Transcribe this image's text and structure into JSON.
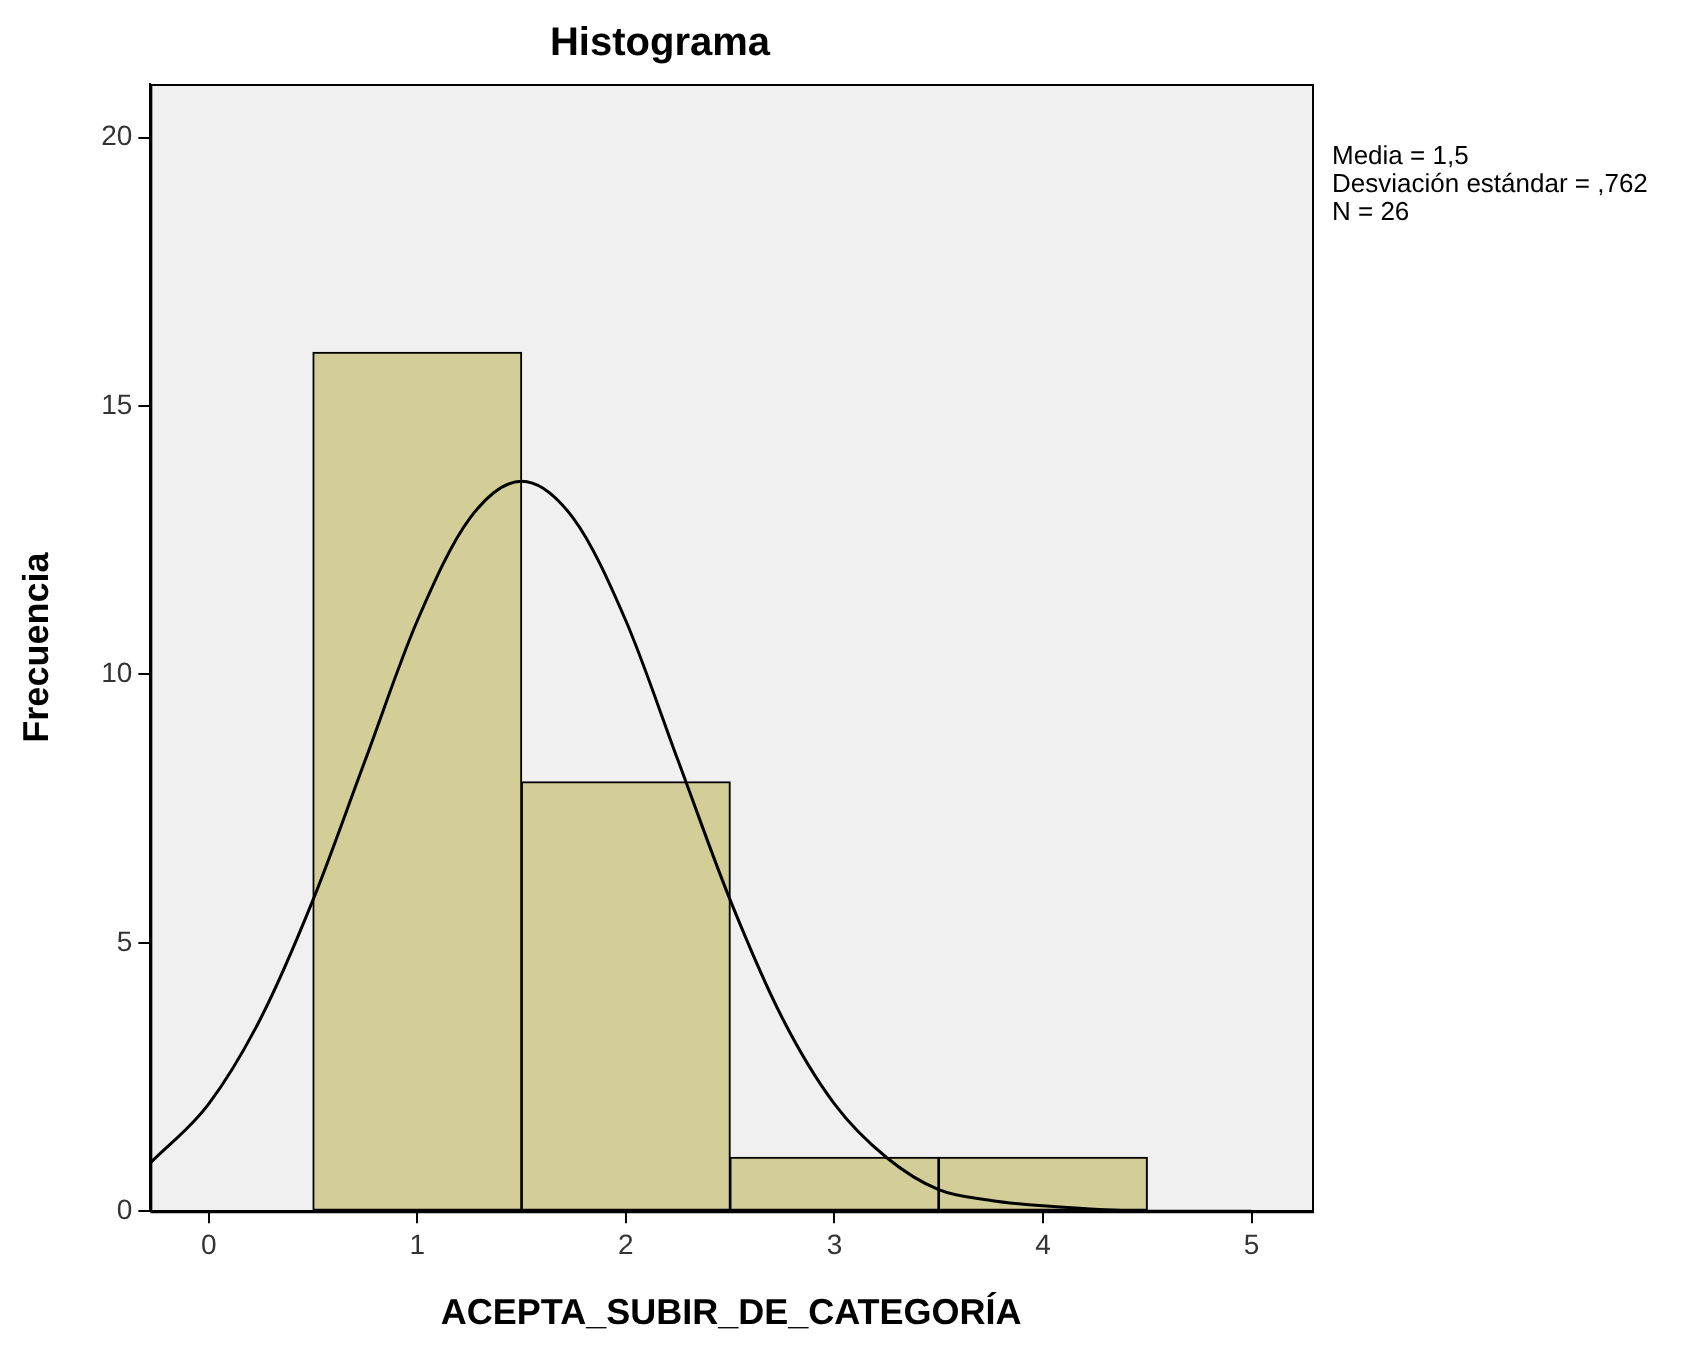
{
  "chart_data": {
    "type": "histogram",
    "title": "Histograma",
    "xlabel": "ACEPTA_SUBIR_DE_CATEGORÍA",
    "ylabel": "Frecuencia",
    "bins": [
      0.5,
      1.5,
      2.5,
      3.5,
      4.5
    ],
    "values": [
      16,
      8,
      1,
      1
    ],
    "color": "#d3ce97",
    "xlim": [
      -0.28,
      5.29
    ],
    "ylim": [
      0,
      21
    ],
    "xticks": [
      0,
      1,
      2,
      3,
      4,
      5
    ],
    "yticks": [
      0,
      5,
      10,
      15,
      20
    ],
    "grid": false,
    "legend": false,
    "annotations": [
      "Media = 1,5",
      "Desviación estándar = ,762",
      "N = 26"
    ],
    "series": [
      {
        "type": "line",
        "color": "#000000",
        "x": [
          -0.28,
          0,
          0.25,
          0.5,
          0.75,
          1,
          1.25,
          1.5,
          1.75,
          2,
          2.25,
          2.5,
          2.75,
          3,
          3.25,
          3.5,
          3.75,
          4,
          4.5,
          5
        ],
        "values": [
          0.9,
          2.0,
          3.6,
          5.8,
          8.4,
          11.0,
          12.9,
          13.6,
          12.9,
          11.0,
          8.4,
          5.8,
          3.6,
          2.0,
          1.0,
          0.4,
          0.2,
          0.1,
          0,
          0
        ]
      }
    ]
  }
}
